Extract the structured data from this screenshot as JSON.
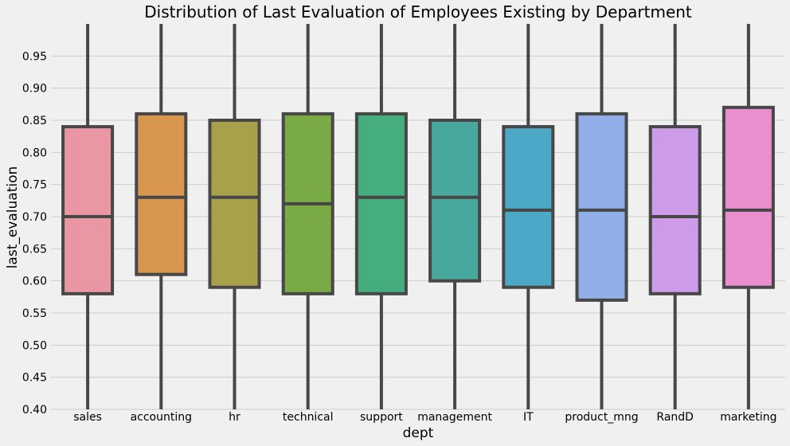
{
  "chart_data": {
    "type": "box",
    "title": "Distribution of Last Evaluation of Employees Existing by Department",
    "xlabel": "dept",
    "ylabel": "last_evaluation",
    "ylim": [
      0.4,
      1.0
    ],
    "yticks": [
      "0.40",
      "0.45",
      "0.50",
      "0.55",
      "0.60",
      "0.65",
      "0.70",
      "0.75",
      "0.80",
      "0.85",
      "0.90",
      "0.95"
    ],
    "grid": true,
    "background": "#f0f0f0",
    "grid_color": "#cbcbcb",
    "line_color": "#474747",
    "categories": [
      "sales",
      "accounting",
      "hr",
      "technical",
      "support",
      "management",
      "IT",
      "product_mng",
      "RandD",
      "marketing"
    ],
    "boxes": [
      {
        "category": "sales",
        "min": 0.4,
        "q1": 0.58,
        "median": 0.7,
        "q3": 0.84,
        "max": 1.0,
        "color": "#ea96a3"
      },
      {
        "category": "accounting",
        "min": 0.4,
        "q1": 0.61,
        "median": 0.73,
        "q3": 0.86,
        "max": 1.0,
        "color": "#d8964f"
      },
      {
        "category": "hr",
        "min": 0.4,
        "q1": 0.59,
        "median": 0.73,
        "q3": 0.85,
        "max": 1.0,
        "color": "#a8a04b"
      },
      {
        "category": "technical",
        "min": 0.4,
        "q1": 0.58,
        "median": 0.72,
        "q3": 0.86,
        "max": 1.0,
        "color": "#7aaa44"
      },
      {
        "category": "support",
        "min": 0.4,
        "q1": 0.58,
        "median": 0.73,
        "q3": 0.86,
        "max": 1.0,
        "color": "#46ad7f"
      },
      {
        "category": "management",
        "min": 0.4,
        "q1": 0.6,
        "median": 0.73,
        "q3": 0.85,
        "max": 1.0,
        "color": "#48a89d"
      },
      {
        "category": "IT",
        "min": 0.4,
        "q1": 0.59,
        "median": 0.71,
        "q3": 0.84,
        "max": 1.0,
        "color": "#4ba8c6"
      },
      {
        "category": "product_mng",
        "min": 0.4,
        "q1": 0.57,
        "median": 0.71,
        "q3": 0.86,
        "max": 1.0,
        "color": "#92aee8"
      },
      {
        "category": "RandD",
        "min": 0.4,
        "q1": 0.58,
        "median": 0.7,
        "q3": 0.84,
        "max": 1.0,
        "color": "#ce9be8"
      },
      {
        "category": "marketing",
        "min": 0.4,
        "q1": 0.59,
        "median": 0.71,
        "q3": 0.87,
        "max": 1.0,
        "color": "#e98fcd"
      }
    ]
  }
}
